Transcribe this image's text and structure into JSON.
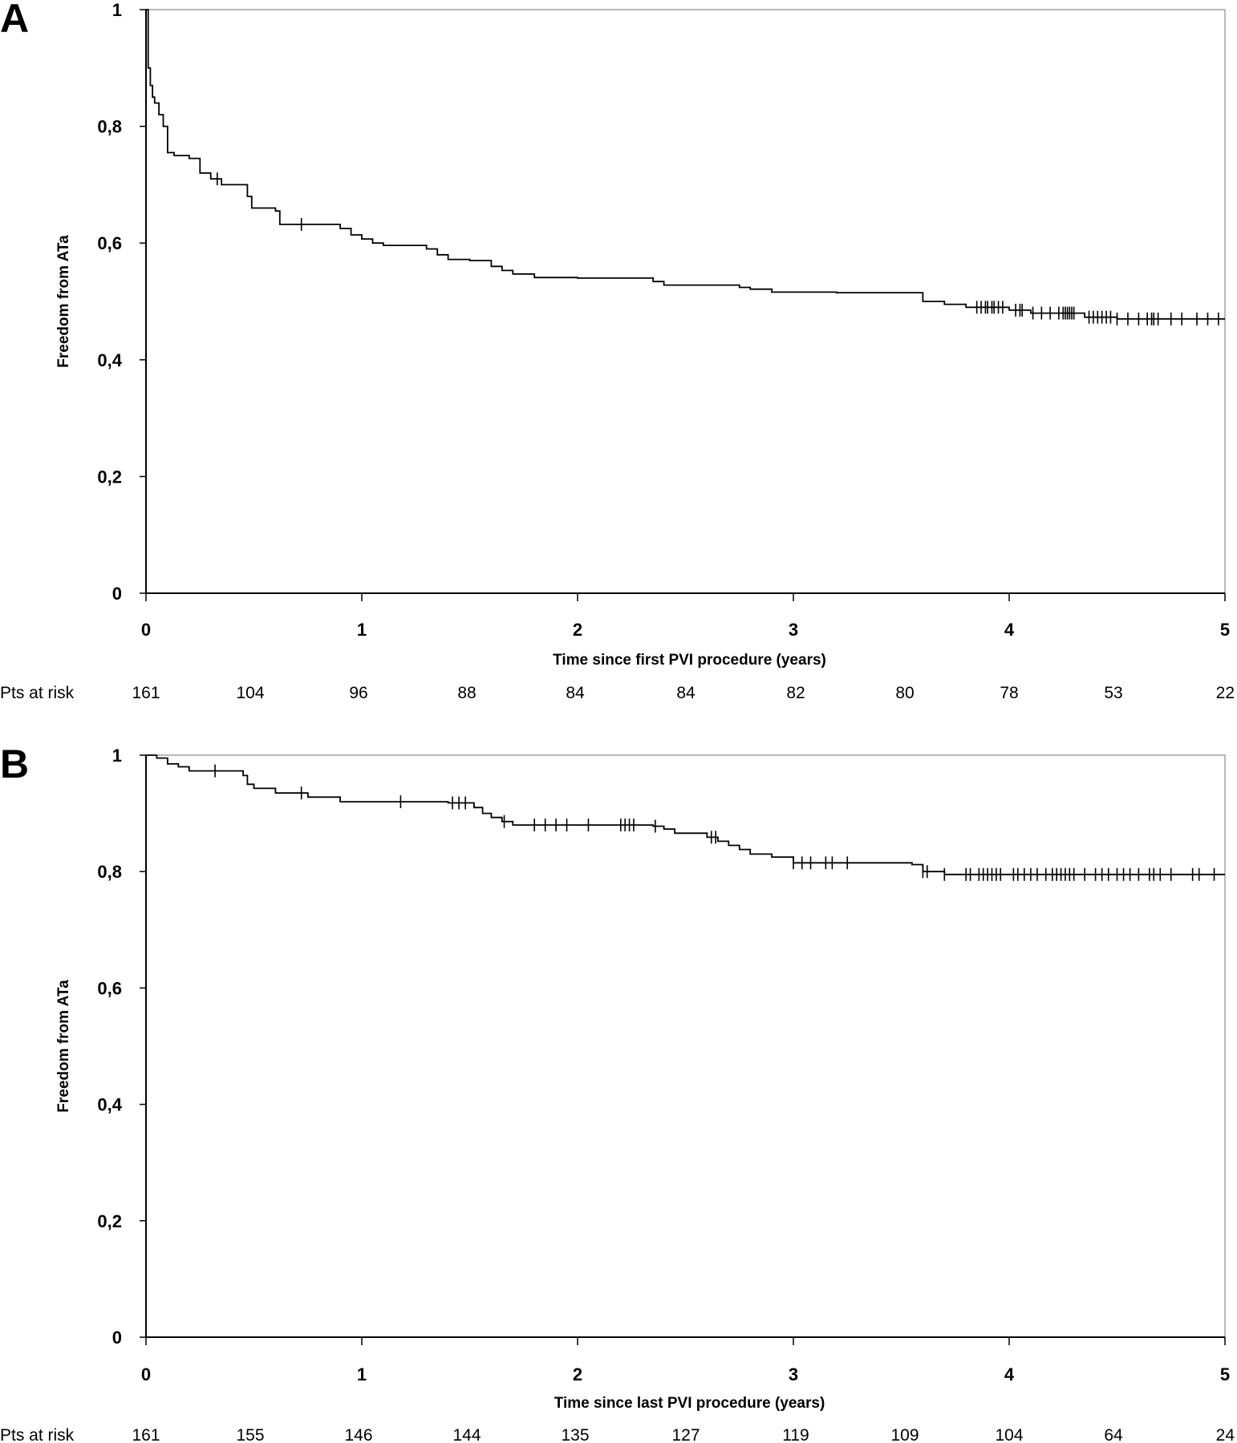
{
  "chart_data": [
    {
      "type": "line",
      "panel": "A",
      "ylabel": "Freedom from ATa",
      "xlabel": "Time since first PVI procedure (years)",
      "xlim": [
        0,
        5
      ],
      "ylim": [
        0,
        1
      ],
      "x_ticks": [
        "0",
        "1",
        "2",
        "3",
        "4",
        "5"
      ],
      "y_ticks": [
        "0",
        "0,2",
        "0,4",
        "0,6",
        "0,8",
        "1"
      ],
      "risk_label": "Pts at risk",
      "risk_counts": [
        "161",
        "104",
        "96",
        "88",
        "84",
        "84",
        "82",
        "80",
        "78",
        "53",
        "22"
      ],
      "series": [
        {
          "x": [
            0,
            0.01,
            0.02,
            0.03,
            0.04,
            0.06,
            0.08,
            0.1,
            0.13,
            0.2,
            0.25,
            0.3,
            0.35,
            0.47,
            0.49,
            0.6,
            0.62,
            0.9,
            0.95,
            1.0,
            1.05,
            1.1,
            1.3,
            1.35,
            1.4,
            1.5,
            1.6,
            1.65,
            1.7,
            1.8,
            2.0,
            2.35,
            2.4,
            2.75,
            2.8,
            2.9,
            3.2,
            3.6,
            3.7,
            3.8,
            4.0,
            4.1,
            4.35,
            4.5,
            5.0
          ],
          "y": [
            1.0,
            0.9,
            0.87,
            0.85,
            0.84,
            0.82,
            0.8,
            0.755,
            0.75,
            0.745,
            0.72,
            0.71,
            0.7,
            0.68,
            0.66,
            0.655,
            0.632,
            0.625,
            0.614,
            0.607,
            0.6,
            0.596,
            0.59,
            0.58,
            0.572,
            0.57,
            0.56,
            0.553,
            0.547,
            0.541,
            0.54,
            0.534,
            0.528,
            0.524,
            0.521,
            0.516,
            0.515,
            0.5,
            0.495,
            0.49,
            0.485,
            0.48,
            0.473,
            0.47,
            0.47
          ]
        }
      ],
      "censored_x": [
        0.33,
        0.72,
        3.85,
        3.87,
        3.89,
        3.9,
        3.92,
        3.93,
        3.95,
        3.97,
        4.03,
        4.05,
        4.06,
        4.11,
        4.15,
        4.19,
        4.23,
        4.25,
        4.26,
        4.27,
        4.28,
        4.29,
        4.3,
        4.37,
        4.39,
        4.41,
        4.43,
        4.45,
        4.47,
        4.5,
        4.55,
        4.6,
        4.64,
        4.66,
        4.67,
        4.69,
        4.75,
        4.8,
        4.87,
        4.92,
        4.97
      ]
    },
    {
      "type": "line",
      "panel": "B",
      "ylabel": "Freedom from ATa",
      "xlabel": "Time since last PVI procedure (years)",
      "xlim": [
        0,
        5
      ],
      "ylim": [
        0,
        1
      ],
      "x_ticks": [
        "0",
        "1",
        "2",
        "3",
        "4",
        "5"
      ],
      "y_ticks": [
        "0",
        "0,2",
        "0,4",
        "0,6",
        "0,8",
        "1"
      ],
      "risk_label": "Pts at risk",
      "risk_counts": [
        "161",
        "155",
        "146",
        "144",
        "135",
        "127",
        "119",
        "109",
        "104",
        "64",
        "24"
      ],
      "series": [
        {
          "x": [
            0,
            0.05,
            0.1,
            0.15,
            0.2,
            0.45,
            0.47,
            0.5,
            0.6,
            0.75,
            0.9,
            1.4,
            1.52,
            1.56,
            1.6,
            1.65,
            1.7,
            2.35,
            2.4,
            2.45,
            2.6,
            2.65,
            2.7,
            2.75,
            2.8,
            2.9,
            3.0,
            3.55,
            3.6,
            3.7,
            5.0
          ],
          "y": [
            1.0,
            0.995,
            0.985,
            0.98,
            0.973,
            0.965,
            0.95,
            0.943,
            0.935,
            0.928,
            0.92,
            0.918,
            0.91,
            0.9,
            0.893,
            0.886,
            0.88,
            0.878,
            0.873,
            0.866,
            0.859,
            0.852,
            0.845,
            0.838,
            0.83,
            0.825,
            0.815,
            0.812,
            0.8,
            0.795,
            0.795
          ]
        }
      ],
      "censored_x": [
        0.32,
        0.72,
        1.18,
        1.42,
        1.45,
        1.48,
        1.66,
        1.8,
        1.85,
        1.9,
        1.95,
        2.05,
        2.2,
        2.22,
        2.24,
        2.26,
        2.36,
        2.62,
        2.64,
        3.0,
        3.04,
        3.08,
        3.15,
        3.18,
        3.25,
        3.6,
        3.62,
        3.7,
        3.8,
        3.82,
        3.86,
        3.88,
        3.9,
        3.92,
        3.94,
        3.96,
        4.02,
        4.04,
        4.07,
        4.1,
        4.13,
        4.17,
        4.2,
        4.22,
        4.24,
        4.26,
        4.28,
        4.3,
        4.35,
        4.4,
        4.43,
        4.46,
        4.5,
        4.53,
        4.56,
        4.6,
        4.65,
        4.67,
        4.7,
        4.75,
        4.85,
        4.88,
        4.95
      ]
    }
  ]
}
